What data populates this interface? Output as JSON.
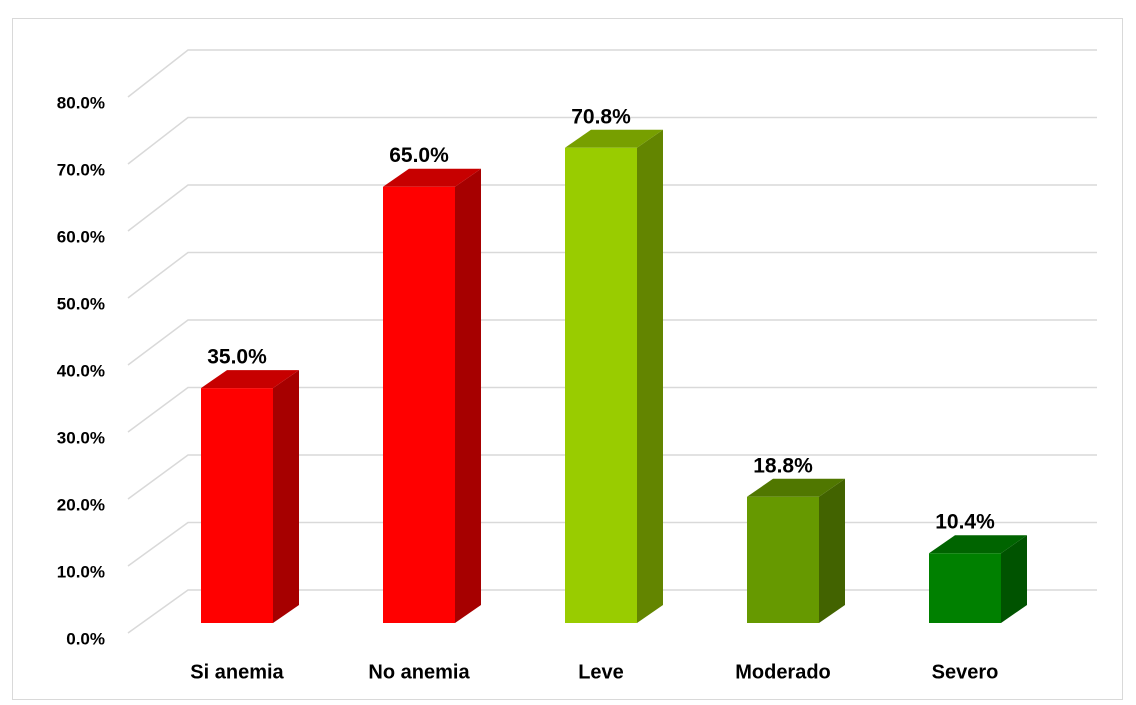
{
  "chart_data": {
    "type": "bar3d",
    "categories": [
      "Si anemia",
      "No anemia",
      "Leve",
      "Moderado",
      "Severo"
    ],
    "values": [
      35.0,
      65.0,
      70.8,
      18.8,
      10.4
    ],
    "value_labels": [
      "35.0%",
      "65.0%",
      "70.8%",
      "18.8%",
      "10.4%"
    ],
    "colors": [
      "#ff0000",
      "#ff0000",
      "#99cc00",
      "#669900",
      "#008000"
    ],
    "ylim": [
      0,
      80
    ],
    "yticks": [
      {
        "value": 0,
        "label": "0.0%"
      },
      {
        "value": 10,
        "label": "10.0%"
      },
      {
        "value": 20,
        "label": "20.0%"
      },
      {
        "value": 30,
        "label": "30.0%"
      },
      {
        "value": 40,
        "label": "40.0%"
      },
      {
        "value": 50,
        "label": "50.0%"
      },
      {
        "value": 60,
        "label": "60.0%"
      },
      {
        "value": 70,
        "label": "70.0%"
      },
      {
        "value": 80,
        "label": "80.0%"
      }
    ],
    "grid": true
  }
}
